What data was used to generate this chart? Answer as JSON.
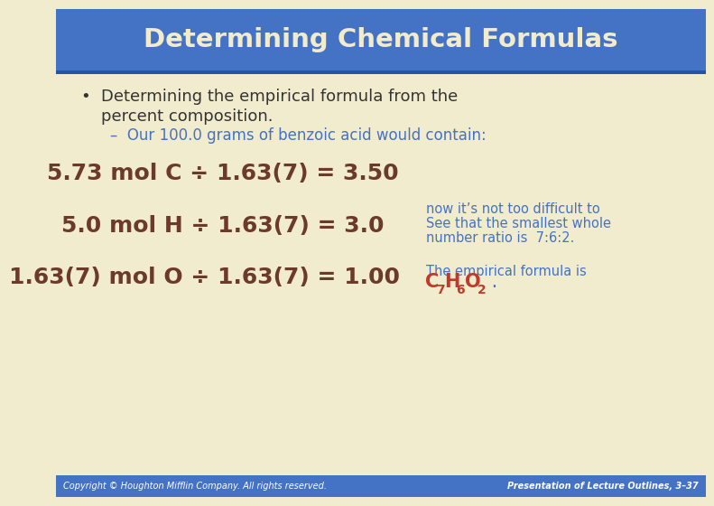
{
  "title": "Determining Chemical Formulas",
  "title_bg": "#4472C4",
  "title_color": "#F2ECCE",
  "body_bg": "#F2ECCE",
  "footer_bg": "#4472C4",
  "footer_left": "Copyright © Houghton Mifflin Company. All rights reserved.",
  "footer_right": "Presentation of Lecture Outlines, 3–37",
  "footer_color": "#FFFFFF",
  "bullet_text1": "Determining the empirical formula from the",
  "bullet_text2": "percent composition.",
  "sub_bullet": "–  Our 100.0 grams of benzoic acid would contain:",
  "eq1": "5.73 mol C ÷ 1.63(7) = 3.50",
  "eq2": "5.0 mol H ÷ 1.63(7) = 3.0",
  "eq3": "1.63(7) mol O ÷ 1.63(7) = 1.00",
  "note1": "now it’s not too difficult to",
  "note2": "See that the smallest whole",
  "note3": "number ratio is  7:6:2.",
  "empirical_label": "The empirical formula is",
  "eq_color": "#6B3A2A",
  "note_color": "#4472C4",
  "empirical_color": "#C0392B",
  "bullet_color": "#333333",
  "sub_bullet_color": "#4472C4",
  "title_fontsize": 21,
  "bullet_fontsize": 13,
  "sub_fontsize": 12,
  "eq_fontsize": 18,
  "note_fontsize": 10.5,
  "footer_fontsize": 7
}
